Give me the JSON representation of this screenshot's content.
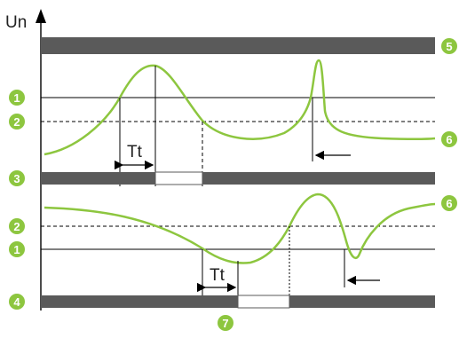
{
  "axis_label": "Un",
  "tt_label": "Tt",
  "markers": {
    "m1": "1",
    "m2": "2",
    "m3": "3",
    "m4": "4",
    "m5": "5",
    "m6": "6",
    "m7": "7"
  },
  "colors": {
    "signal": "#8dc63f",
    "badge": "#8dc63f",
    "bar": "#5a5a5a",
    "line": "#000000"
  }
}
